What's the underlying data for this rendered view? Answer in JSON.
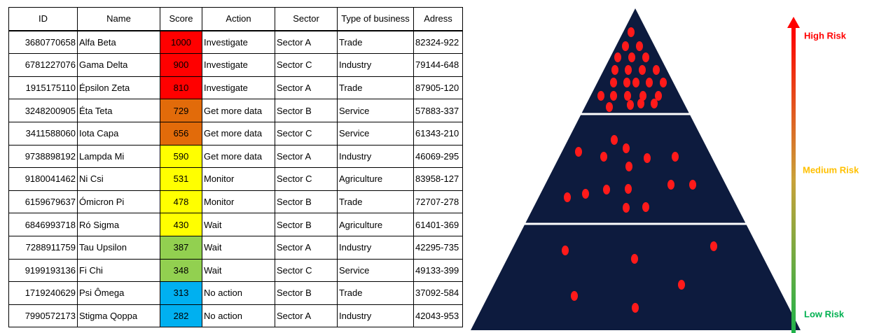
{
  "table": {
    "columns": [
      "ID",
      "Name",
      "Score",
      "Action",
      "Sector",
      "Type of business",
      "Adress"
    ],
    "rows": [
      [
        "3680770658",
        "Alfa Beta",
        "1000",
        "Investigate",
        "Sector A",
        "Trade",
        "82324-922"
      ],
      [
        "6781227076",
        "Gama Delta",
        "900",
        "Investigate",
        "Sector C",
        "Industry",
        "79144-648"
      ],
      [
        "1915175110",
        "Épsilon Zeta",
        "810",
        "Investigate",
        "Sector A",
        "Trade",
        "87905-120"
      ],
      [
        "3248200905",
        "Éta Teta",
        "729",
        "Get more data",
        "Sector B",
        "Service",
        "57883-337"
      ],
      [
        "3411588060",
        "Iota Capa",
        "656",
        "Get more data",
        "Sector C",
        "Service",
        "61343-210"
      ],
      [
        "9738898192",
        "Lampda Mi",
        "590",
        "Get more data",
        "Sector A",
        "Industry",
        "46069-295"
      ],
      [
        "9180041462",
        "Ni Csi",
        "531",
        "Monitor",
        "Sector C",
        "Agriculture",
        "83958-127"
      ],
      [
        "6159679637",
        "Ómicron Pi",
        "478",
        "Monitor",
        "Sector B",
        "Trade",
        "72707-278"
      ],
      [
        "6846993718",
        "Ró Sigma",
        "430",
        "Wait",
        "Sector B",
        "Agriculture",
        "61401-369"
      ],
      [
        "7288911759",
        "Tau Upsilon",
        "387",
        "Wait",
        "Sector A",
        "Industry",
        "42295-735"
      ],
      [
        "9199193136",
        "Fi Chi",
        "348",
        "Wait",
        "Sector C",
        "Service",
        "49133-399"
      ],
      [
        "1719240629",
        "Psi Ômega",
        "313",
        "No action",
        "Sector B",
        "Trade",
        "37092-584"
      ],
      [
        "7990572173",
        "Stigma Qoppa",
        "282",
        "No action",
        "Sector A",
        "Industry",
        "42043-953"
      ]
    ],
    "score_colors": [
      "#ff0000",
      "#ff0000",
      "#ff0000",
      "#e26b0a",
      "#e26b0a",
      "#ffff00",
      "#ffff00",
      "#ffff00",
      "#ffff00",
      "#92d050",
      "#92d050",
      "#00b0f0",
      "#00b0f0"
    ]
  },
  "legend": {
    "high": "High Risk",
    "medium": "Medium Risk",
    "low": "Low Risk"
  }
}
